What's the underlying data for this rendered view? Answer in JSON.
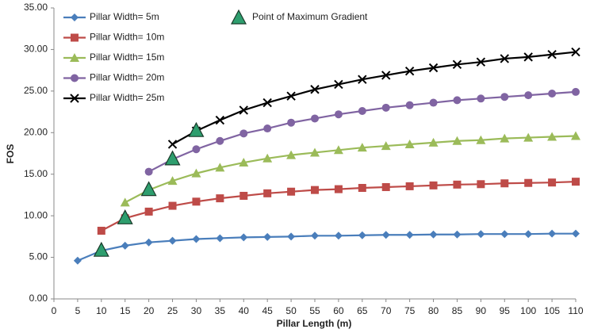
{
  "chart_data": {
    "type": "line",
    "x_label": "Pillar Length (m)",
    "y_label": "FOS",
    "xlim": [
      0,
      110
    ],
    "xticks": [
      0,
      5,
      10,
      15,
      20,
      25,
      30,
      35,
      40,
      45,
      50,
      55,
      60,
      65,
      70,
      75,
      80,
      85,
      90,
      95,
      100,
      105,
      110
    ],
    "ylim": [
      0,
      35
    ],
    "yticks": [
      {
        "value": 0,
        "label": "0.00"
      },
      {
        "value": 5,
        "label": "5.00"
      },
      {
        "value": 10,
        "label": "10.00"
      },
      {
        "value": 15,
        "label": "15.00"
      },
      {
        "value": 20,
        "label": "20.00"
      },
      {
        "value": 25,
        "label": "25.00"
      },
      {
        "value": 30,
        "label": "30.00"
      },
      {
        "value": 35,
        "label": "35.00"
      }
    ],
    "series": [
      {
        "name": "Pillar Width= 5m",
        "color": "#4a7ebb",
        "marker": "diamond",
        "x": [
          5,
          10,
          15,
          20,
          25,
          30,
          35,
          40,
          45,
          50,
          55,
          60,
          65,
          70,
          75,
          80,
          85,
          90,
          95,
          100,
          105,
          110
        ],
        "values": [
          4.6,
          5.8,
          6.4,
          6.8,
          7.0,
          7.2,
          7.3,
          7.4,
          7.45,
          7.5,
          7.6,
          7.6,
          7.65,
          7.7,
          7.7,
          7.75,
          7.75,
          7.8,
          7.8,
          7.8,
          7.85,
          7.85
        ]
      },
      {
        "name": "Pillar Width= 10m",
        "color": "#be4b48",
        "marker": "square",
        "x": [
          10,
          15,
          20,
          25,
          30,
          35,
          40,
          45,
          50,
          55,
          60,
          65,
          70,
          75,
          80,
          85,
          90,
          95,
          100,
          105,
          110
        ],
        "values": [
          8.2,
          9.7,
          10.5,
          11.2,
          11.7,
          12.1,
          12.4,
          12.7,
          12.9,
          13.1,
          13.2,
          13.35,
          13.45,
          13.55,
          13.65,
          13.75,
          13.8,
          13.9,
          13.95,
          14.0,
          14.1
        ]
      },
      {
        "name": "Pillar Width= 15m",
        "color": "#9bbb59",
        "marker": "triangle",
        "x": [
          15,
          20,
          25,
          30,
          35,
          40,
          45,
          50,
          55,
          60,
          65,
          70,
          75,
          80,
          85,
          90,
          95,
          100,
          105,
          110
        ],
        "values": [
          11.6,
          13.1,
          14.2,
          15.1,
          15.8,
          16.4,
          16.9,
          17.3,
          17.6,
          17.9,
          18.2,
          18.4,
          18.6,
          18.8,
          19.0,
          19.1,
          19.3,
          19.4,
          19.5,
          19.6
        ]
      },
      {
        "name": "Pillar Width= 20m",
        "color": "#8064a2",
        "marker": "circle",
        "x": [
          20,
          25,
          30,
          35,
          40,
          45,
          50,
          55,
          60,
          65,
          70,
          75,
          80,
          85,
          90,
          95,
          100,
          105,
          110
        ],
        "values": [
          15.3,
          16.8,
          18.0,
          19.0,
          19.9,
          20.5,
          21.2,
          21.7,
          22.2,
          22.6,
          23.0,
          23.3,
          23.6,
          23.9,
          24.1,
          24.3,
          24.5,
          24.7,
          24.9
        ]
      },
      {
        "name": "Pillar Width= 25m",
        "color": "#000000",
        "marker": "x",
        "x": [
          25,
          30,
          35,
          40,
          45,
          50,
          55,
          60,
          65,
          70,
          75,
          80,
          85,
          90,
          95,
          100,
          105,
          110
        ],
        "values": [
          18.6,
          20.2,
          21.5,
          22.7,
          23.6,
          24.4,
          25.2,
          25.8,
          26.4,
          26.9,
          27.4,
          27.8,
          28.2,
          28.5,
          28.9,
          29.1,
          29.4,
          29.7
        ]
      }
    ],
    "highlight": {
      "name": "Point of Maximum Gradient",
      "color": "#2e9e6e",
      "marker": "big-triangle",
      "x": [
        10,
        15,
        20,
        25,
        30
      ],
      "values": [
        5.8,
        9.7,
        13.1,
        16.8,
        20.2
      ]
    }
  }
}
